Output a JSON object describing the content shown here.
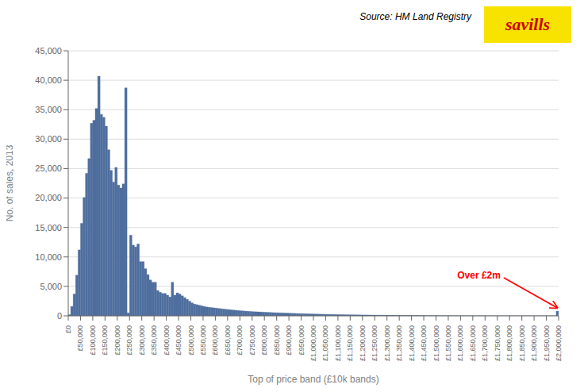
{
  "chart_data": {
    "type": "histogram",
    "xlabel": "Top of price band (£10k bands)",
    "ylabel": "No. of sales, 2013",
    "source": "Source: HM Land Registry",
    "logo": "savills",
    "annotations": [
      {
        "text": "Over £2m",
        "color": "red"
      }
    ],
    "color": "#4e6e9e",
    "grid": true,
    "bins": [
      0,
      10000,
      20000,
      30000,
      40000,
      50000,
      60000,
      70000,
      80000,
      90000,
      100000,
      110000,
      120000,
      130000,
      140000,
      150000,
      160000,
      170000,
      180000,
      190000,
      200000,
      210000,
      220000,
      230000,
      240000,
      250000,
      260000,
      270000,
      280000,
      290000,
      300000,
      310000,
      320000,
      330000,
      340000,
      350000,
      360000,
      370000,
      380000,
      390000,
      400000,
      410000,
      420000,
      430000,
      440000,
      450000,
      460000,
      470000,
      480000,
      490000,
      500000,
      510000,
      520000,
      530000,
      540000,
      550000,
      560000,
      570000,
      580000,
      590000,
      600000,
      610000,
      620000,
      630000,
      640000,
      650000,
      660000,
      670000,
      680000,
      690000,
      700000,
      710000,
      720000,
      730000,
      740000,
      750000,
      760000,
      770000,
      780000,
      790000,
      800000,
      810000,
      820000,
      830000,
      840000,
      850000,
      860000,
      870000,
      880000,
      890000,
      900000,
      910000,
      920000,
      930000,
      940000,
      950000,
      960000,
      970000,
      980000,
      990000,
      1000000,
      1010000,
      1020000,
      1030000,
      1040000,
      1050000,
      1060000,
      1070000,
      1080000,
      1090000,
      1100000,
      1110000,
      1120000,
      1130000,
      1140000,
      1150000,
      1160000,
      1170000,
      1180000,
      1190000,
      1200000,
      1210000,
      1220000,
      1230000,
      1240000,
      1250000,
      1260000,
      1270000,
      1280000,
      1290000,
      1300000,
      1310000,
      1320000,
      1330000,
      1340000,
      1350000,
      1360000,
      1370000,
      1380000,
      1390000,
      1400000,
      1410000,
      1420000,
      1430000,
      1440000,
      1450000,
      1460000,
      1470000,
      1480000,
      1490000,
      1500000,
      1510000,
      1520000,
      1530000,
      1540000,
      1550000,
      1560000,
      1570000,
      1580000,
      1590000,
      1600000,
      1610000,
      1620000,
      1630000,
      1640000,
      1650000,
      1660000,
      1670000,
      1680000,
      1690000,
      1700000,
      1710000,
      1720000,
      1730000,
      1740000,
      1750000,
      1760000,
      1770000,
      1780000,
      1790000,
      1800000,
      1810000,
      1820000,
      1830000,
      1840000,
      1850000,
      1860000,
      1870000,
      1880000,
      1890000,
      1900000,
      1910000,
      1920000,
      1930000,
      1940000,
      1950000,
      1960000,
      1970000,
      1980000,
      1990000,
      2000000
    ],
    "values": [
      200,
      1600,
      3700,
      6900,
      11200,
      15700,
      20100,
      24200,
      26700,
      32700,
      33200,
      35200,
      40700,
      34200,
      33700,
      32200,
      28200,
      24700,
      22700,
      25200,
      22200,
      21700,
      22400,
      38700,
      500,
      13700,
      12000,
      11700,
      12200,
      9200,
      9200,
      8000,
      7000,
      6100,
      5700,
      5700,
      4300,
      4000,
      3800,
      3800,
      3500,
      3200,
      5700,
      3500,
      3900,
      3700,
      3400,
      3100,
      2800,
      2500,
      2200,
      2000,
      1900,
      1800,
      1700,
      1600,
      1500,
      1450,
      1400,
      1350,
      1300,
      1250,
      1200,
      1150,
      1100,
      1060,
      1020,
      980,
      940,
      900,
      860,
      830,
      800,
      770,
      740,
      710,
      690,
      670,
      650,
      630,
      610,
      590,
      570,
      550,
      535,
      520,
      505,
      490,
      475,
      460,
      445,
      430,
      415,
      400,
      385,
      370,
      358,
      346,
      334,
      322,
      310,
      300,
      290,
      280,
      270,
      260,
      250,
      242,
      234,
      226,
      218,
      210,
      203,
      196,
      189,
      182,
      176,
      170,
      164,
      158,
      152,
      147,
      142,
      137,
      132,
      127,
      122,
      118,
      114,
      110,
      106,
      102,
      98,
      94,
      90,
      86,
      82,
      78,
      74,
      70,
      66,
      62,
      58,
      54,
      50,
      47,
      44,
      41,
      38,
      35,
      32,
      30,
      28,
      26,
      24,
      22,
      20,
      18,
      16,
      14,
      12,
      11,
      10,
      9,
      8,
      7,
      7,
      6,
      6,
      5,
      5,
      4,
      4,
      4,
      3,
      3,
      3,
      3,
      3,
      3,
      2,
      2,
      2,
      2,
      2,
      2,
      2,
      2,
      2,
      2,
      2,
      2,
      2,
      2,
      2,
      2,
      2,
      2,
      2,
      800
    ],
    "xlim": [
      0,
      2000000
    ],
    "xticks": [
      {
        "value": 0,
        "label": "£0"
      },
      {
        "value": 50000,
        "label": "£50,000"
      },
      {
        "value": 100000,
        "label": "£100,000"
      },
      {
        "value": 150000,
        "label": "£150,000"
      },
      {
        "value": 200000,
        "label": "£200,000"
      },
      {
        "value": 250000,
        "label": "£250,000"
      },
      {
        "value": 300000,
        "label": "£300,000"
      },
      {
        "value": 350000,
        "label": "£350,000"
      },
      {
        "value": 400000,
        "label": "£400,000"
      },
      {
        "value": 450000,
        "label": "£450,000"
      },
      {
        "value": 500000,
        "label": "£500,000"
      },
      {
        "value": 550000,
        "label": "£550,000"
      },
      {
        "value": 600000,
        "label": "£600,000"
      },
      {
        "value": 650000,
        "label": "£650,000"
      },
      {
        "value": 700000,
        "label": "£700,000"
      },
      {
        "value": 750000,
        "label": "£750,000"
      },
      {
        "value": 800000,
        "label": "£800,000"
      },
      {
        "value": 850000,
        "label": "£850,000"
      },
      {
        "value": 900000,
        "label": "£900,000"
      },
      {
        "value": 950000,
        "label": "£950,000"
      },
      {
        "value": 1000000,
        "label": "£1,000,000"
      },
      {
        "value": 1050000,
        "label": "£1,050,000"
      },
      {
        "value": 1100000,
        "label": "£1,100,000"
      },
      {
        "value": 1150000,
        "label": "£1,150,000"
      },
      {
        "value": 1200000,
        "label": "£1,200,000"
      },
      {
        "value": 1250000,
        "label": "£1,250,000"
      },
      {
        "value": 1300000,
        "label": "£1,300,000"
      },
      {
        "value": 1350000,
        "label": "£1,350,000"
      },
      {
        "value": 1400000,
        "label": "£1,400,000"
      },
      {
        "value": 1450000,
        "label": "£1,450,000"
      },
      {
        "value": 1500000,
        "label": "£1,500,000"
      },
      {
        "value": 1550000,
        "label": "£1,550,000"
      },
      {
        "value": 1600000,
        "label": "£1,600,000"
      },
      {
        "value": 1650000,
        "label": "£1,650,000"
      },
      {
        "value": 1700000,
        "label": "£1,700,000"
      },
      {
        "value": 1750000,
        "label": "£1,750,000"
      },
      {
        "value": 1800000,
        "label": "£1,800,000"
      },
      {
        "value": 1850000,
        "label": "£1,850,000"
      },
      {
        "value": 1900000,
        "label": "£1,900,000"
      },
      {
        "value": 1950000,
        "label": "£1,950,000"
      },
      {
        "value": 2000000,
        "label": "£2,000,000"
      }
    ],
    "ylim": [
      0,
      45000
    ],
    "yticks": [
      0,
      {
        "value": 5000,
        "label": "5,000"
      },
      {
        "value": 10000,
        "label": "10,000"
      },
      {
        "value": 15000,
        "label": "15,000"
      },
      {
        "value": 20000,
        "label": "20,000"
      },
      {
        "value": 25000,
        "label": "25,000"
      },
      {
        "value": 30000,
        "label": "30,000"
      },
      {
        "value": 35000,
        "label": "35,000"
      },
      {
        "value": 40000,
        "label": "40,000"
      },
      {
        "value": 45000,
        "label": "45,000"
      }
    ]
  }
}
